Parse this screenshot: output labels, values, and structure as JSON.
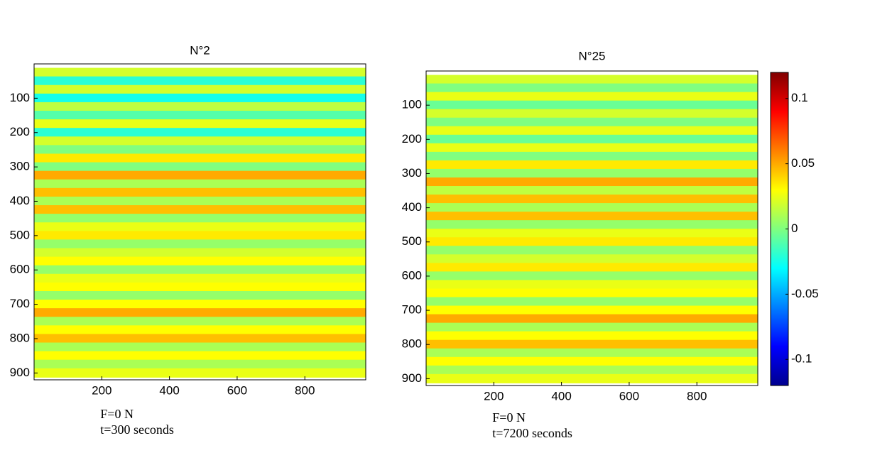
{
  "chart_data": [
    {
      "type": "heatmap",
      "title": "N°2",
      "y": [
        25,
        50,
        75,
        100,
        125,
        150,
        175,
        200,
        225,
        250,
        275,
        300,
        325,
        350,
        375,
        400,
        425,
        450,
        475,
        500,
        525,
        550,
        575,
        600,
        625,
        650,
        675,
        700,
        725,
        750,
        775,
        800,
        825,
        850,
        875,
        900
      ],
      "values": [
        0.02,
        -0.02,
        0.02,
        -0.025,
        0.015,
        -0.01,
        0.025,
        -0.02,
        0.02,
        0,
        0.035,
        0,
        0.05,
        0.01,
        0.045,
        0.01,
        0.045,
        0.005,
        0.025,
        0.035,
        0.005,
        0.02,
        0.03,
        0.005,
        0.025,
        0.03,
        0.005,
        0.03,
        0.05,
        0.01,
        0.03,
        0.045,
        0.01,
        0.03,
        0.01,
        0.025
      ],
      "xlim": [
        0,
        980
      ],
      "ylim": [
        0,
        920
      ],
      "xticks": [
        200,
        400,
        600,
        800
      ],
      "yticks": [
        100,
        200,
        300,
        400,
        500,
        600,
        700,
        800,
        900
      ],
      "annotations": [
        "F=0 N",
        "t=300 seconds"
      ]
    },
    {
      "type": "heatmap",
      "title": "N°25",
      "y": [
        25,
        50,
        75,
        100,
        125,
        150,
        175,
        200,
        225,
        250,
        275,
        300,
        325,
        350,
        375,
        400,
        425,
        450,
        475,
        500,
        525,
        550,
        575,
        600,
        625,
        650,
        675,
        700,
        725,
        750,
        775,
        800,
        825,
        850,
        875,
        900
      ],
      "values": [
        0.02,
        0,
        0.025,
        -0.005,
        0.02,
        0,
        0.025,
        -0.005,
        0.025,
        0,
        0.035,
        0.005,
        0.05,
        0.015,
        0.045,
        0.01,
        0.045,
        0.005,
        0.025,
        0.035,
        0.005,
        0.02,
        0.035,
        0.005,
        0.025,
        0.03,
        0.005,
        0.03,
        0.05,
        0.01,
        0.03,
        0.045,
        0.01,
        0.03,
        0.01,
        0.025
      ],
      "xlim": [
        0,
        980
      ],
      "ylim": [
        0,
        920
      ],
      "xticks": [
        200,
        400,
        600,
        800
      ],
      "yticks": [
        100,
        200,
        300,
        400,
        500,
        600,
        700,
        800,
        900
      ],
      "annotations": [
        "F=0 N",
        "t=7200 seconds"
      ]
    },
    {
      "type": "colorbar",
      "ylim": [
        -0.12,
        0.12
      ],
      "yticks": [
        -0.1,
        -0.05,
        0,
        0.05,
        0.1
      ]
    }
  ]
}
